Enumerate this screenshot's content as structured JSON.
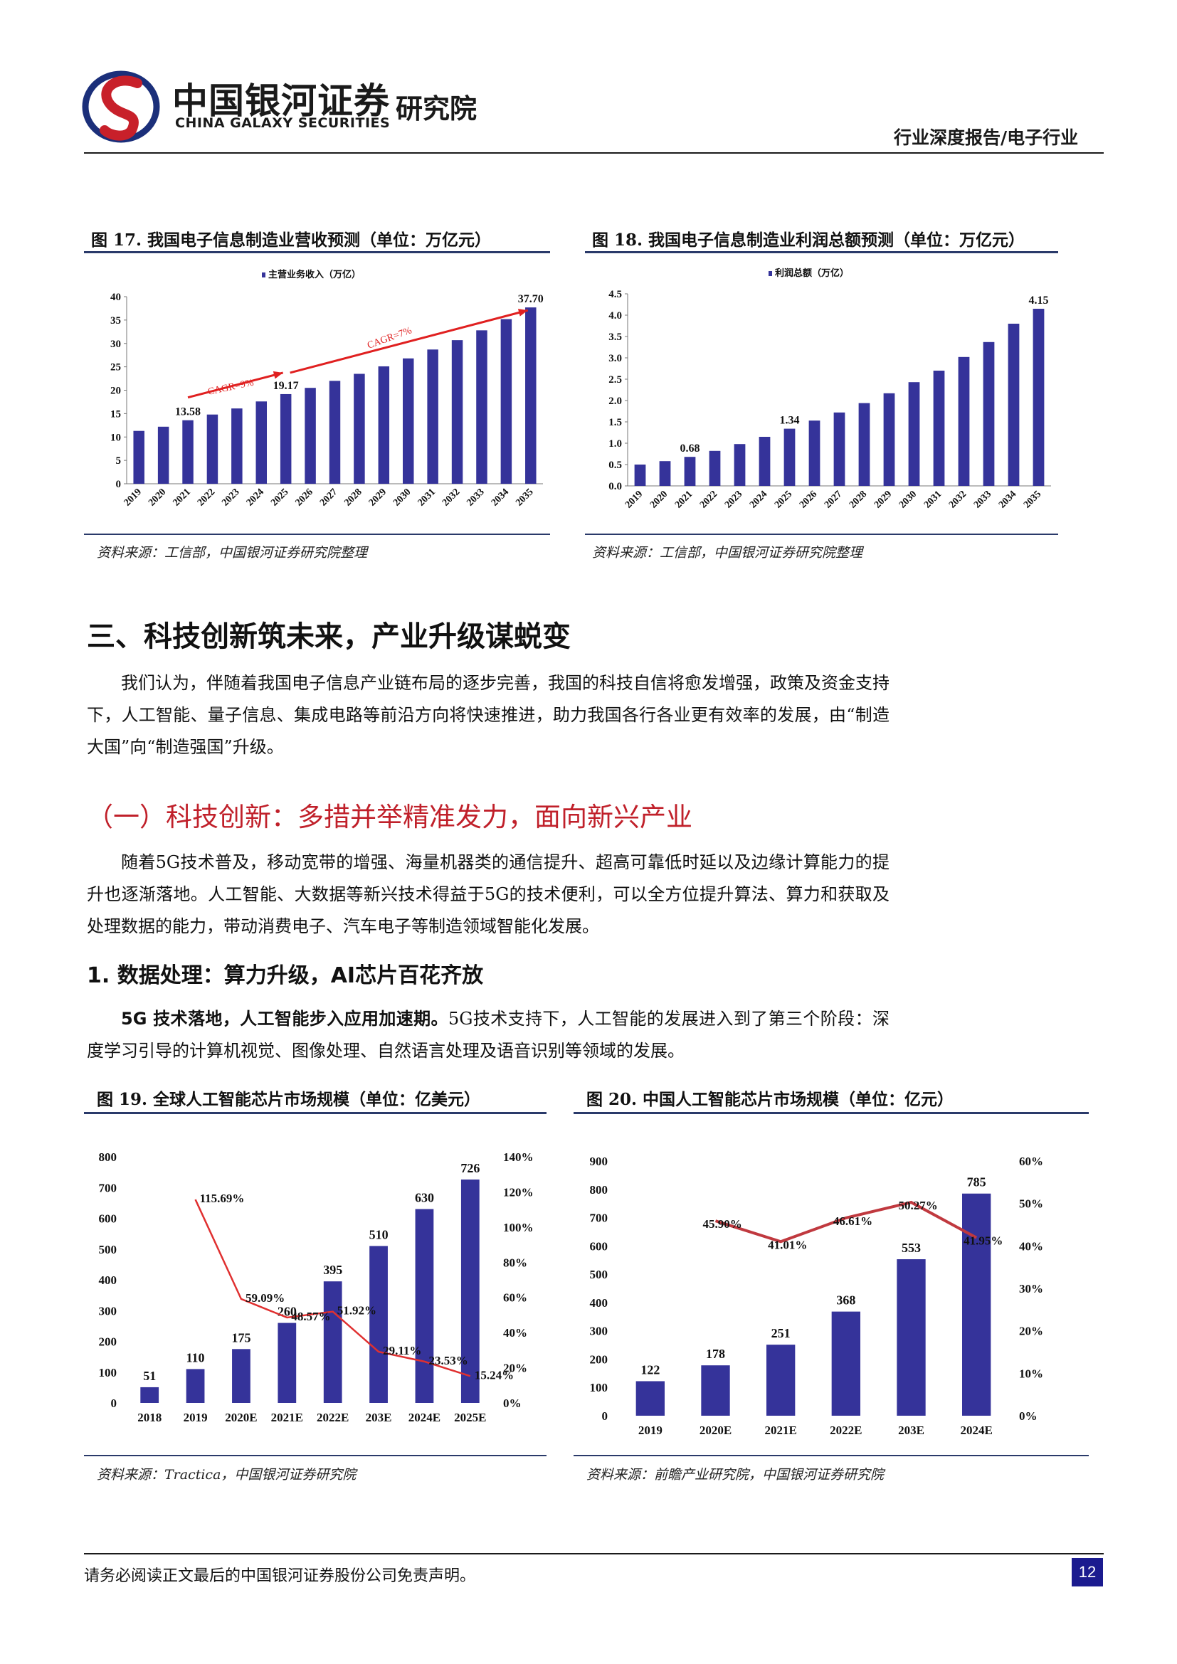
{
  "header": {
    "logo_cn": "中国银河证券",
    "logo_en": "CHINA GALAXY SECURITIES",
    "institute": "研究院",
    "report_type": "行业深度报告/电子行业",
    "colors": {
      "brand_red": "#c8202a",
      "brand_navy": "#1b2f7a"
    }
  },
  "figures": {
    "fig17": {
      "title": "图 17. 我国电子信息制造业营收预测（单位：万亿元）",
      "source": "资料来源：工信部，中国银河证券研究院整理"
    },
    "fig18": {
      "title": "图 18. 我国电子信息制造业利润总额预测（单位：万亿元）",
      "source": "资料来源：工信部，中国银河证券研究院整理"
    },
    "fig19": {
      "title": "图 19. 全球人工智能芯片市场规模（单位：亿美元）",
      "source": "资料来源：Tractica，中国银河证券研究院"
    },
    "fig20": {
      "title": "图 20. 中国人工智能芯片市场规模（单位：亿元）",
      "source": "资料来源：前瞻产业研究院，中国银河证券研究院"
    }
  },
  "chart_data": [
    {
      "type": "bar",
      "id": "fig17",
      "legend": "主营业务收入（万亿）",
      "categories": [
        "2019",
        "2020",
        "2021",
        "2022",
        "2023",
        "2024",
        "2025",
        "2026",
        "2027",
        "2028",
        "2029",
        "2030",
        "2031",
        "2032",
        "2033",
        "2034",
        "2035"
      ],
      "values": [
        11.3,
        12.2,
        13.58,
        14.8,
        16.1,
        17.6,
        19.17,
        20.5,
        22.0,
        23.5,
        25.1,
        26.8,
        28.7,
        30.7,
        32.8,
        35.2,
        37.7
      ],
      "value_labels": {
        "2021": "13.58",
        "2025": "19.17",
        "2035": "37.70"
      },
      "ylim": [
        0,
        40
      ],
      "yticks": [
        "0",
        "5",
        "10",
        "15",
        "20",
        "25",
        "30",
        "35",
        "40"
      ],
      "annotations": [
        "CAGR=9%",
        "CAGR=7%"
      ],
      "bar_color": "#35339a",
      "arrow_color": "#e02020"
    },
    {
      "type": "bar",
      "id": "fig18",
      "legend": "利润总额（万亿）",
      "categories": [
        "2019",
        "2020",
        "2021",
        "2022",
        "2023",
        "2024",
        "2025",
        "2026",
        "2027",
        "2028",
        "2029",
        "2030",
        "2031",
        "2032",
        "2033",
        "2034",
        "2035"
      ],
      "values": [
        0.5,
        0.58,
        0.68,
        0.82,
        0.98,
        1.15,
        1.34,
        1.53,
        1.72,
        1.94,
        2.17,
        2.43,
        2.7,
        3.02,
        3.37,
        3.8,
        4.15
      ],
      "value_labels": {
        "2021": "0.68",
        "2025": "1.34",
        "2035": "4.15"
      },
      "ylim": [
        0,
        4.5
      ],
      "yticks": [
        "0.0",
        "0.5",
        "1.0",
        "1.5",
        "2.0",
        "2.5",
        "3.0",
        "3.5",
        "4.0",
        "4.5"
      ],
      "bar_color": "#35339a"
    },
    {
      "type": "bar",
      "id": "fig19",
      "categories": [
        "2018",
        "2019",
        "2020E",
        "2021E",
        "2022E",
        "203E",
        "2024E",
        "2025E"
      ],
      "values": [
        51,
        110,
        175,
        260,
        395,
        510,
        630,
        726
      ],
      "value_labels": [
        "51",
        "110",
        "175",
        "260",
        "395",
        "510",
        "630",
        "726"
      ],
      "ylim": [
        0,
        800
      ],
      "yticks": [
        "0",
        "100",
        "200",
        "300",
        "400",
        "500",
        "600",
        "700",
        "800"
      ],
      "y2lim": [
        0,
        140
      ],
      "y2ticks": [
        "0%",
        "20%",
        "40%",
        "60%",
        "80%",
        "100%",
        "120%",
        "140%"
      ],
      "line_values": [
        null,
        115.69,
        59.09,
        48.57,
        51.92,
        29.11,
        23.53,
        15.24
      ],
      "line_labels": [
        "",
        "115.69%",
        "59.09%",
        "48.57%",
        "51.92%",
        "29.11%",
        "23.53%",
        "15.24%"
      ],
      "bar_color": "#35339a",
      "line_color": "#e03030"
    },
    {
      "type": "bar",
      "id": "fig20",
      "categories": [
        "2019",
        "2020E",
        "2021E",
        "2022E",
        "203E",
        "2024E"
      ],
      "values": [
        122,
        178,
        251,
        368,
        553,
        785
      ],
      "value_labels": [
        "122",
        "178",
        "251",
        "368",
        "553",
        "785"
      ],
      "ylim": [
        0,
        900
      ],
      "yticks": [
        "0",
        "100",
        "200",
        "300",
        "400",
        "500",
        "600",
        "700",
        "800",
        "900"
      ],
      "y2lim": [
        0,
        60
      ],
      "y2ticks": [
        "0%",
        "10%",
        "20%",
        "30%",
        "40%",
        "50%",
        "60%"
      ],
      "line_values": [
        null,
        45.9,
        41.01,
        46.61,
        50.27,
        41.95
      ],
      "line_labels": [
        "",
        "45.90%",
        "41.01%",
        "46.61%",
        "50.27%",
        "41.95%"
      ],
      "bar_color": "#35339a",
      "line_color": "#c0393f"
    }
  ],
  "section3": {
    "title": "三、科技创新筑未来，产业升级谋蜕变",
    "paragraph": "我们认为，伴随着我国电子信息产业链布局的逐步完善，我国的科技自信将愈发增强，政策及资金支持下，人工智能、量子信息、集成电路等前沿方向将快速推进，助力我国各行各业更有效率的发展，由“制造大国”向“制造强国”升级。"
  },
  "subsection1": {
    "title": "（一）科技创新：多措并举精准发力，面向新兴产业",
    "paragraph": "随着5G技术普及，移动宽带的增强、海量机器类的通信提升、超高可靠低时延以及边缘计算能力的提升也逐渐落地。人工智能、大数据等新兴技术得益于5G的技术便利，可以全方位提升算法、算力和获取及处理数据的能力，带动消费电子、汽车电子等制造领域智能化发展。"
  },
  "item1": {
    "title": "1. 数据处理：算力升级，AI芯片百花齐放",
    "bold_lead": "5G 技术落地，人工智能步入应用加速期。",
    "paragraph": "5G技术支持下，人工智能的发展进入到了第三个阶段：深度学习引导的计算机视觉、图像处理、自然语言处理及语音识别等领域的发展。"
  },
  "footer": {
    "disclaimer": "请务必阅读正文最后的中国银河证券股份公司免责声明。",
    "page": "12"
  }
}
